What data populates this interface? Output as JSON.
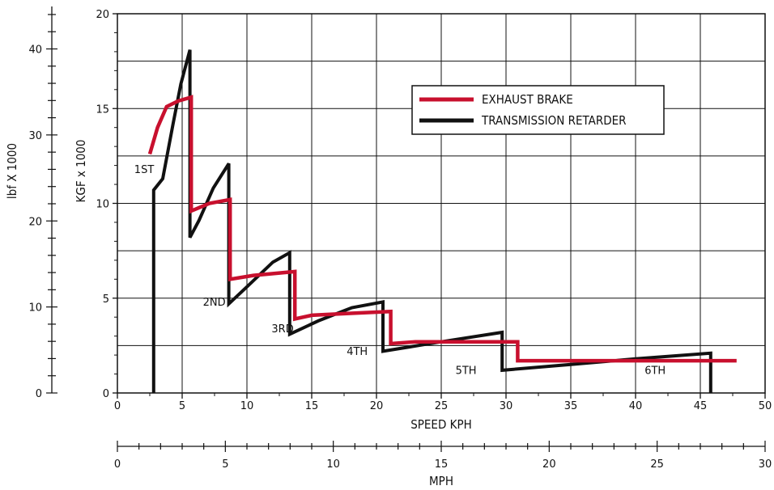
{
  "chart_data": {
    "type": "line",
    "title": "",
    "xlabel": "SPEED KPH",
    "ylabel": "KGF x 1000",
    "secondary_x_label": "MPH",
    "secondary_y_label": "lbf X 1000",
    "xlim": [
      0,
      50
    ],
    "ylim": [
      0,
      20
    ],
    "mph_lim": [
      0,
      30
    ],
    "lbf_lim": [
      0,
      44.09
    ],
    "grid": true,
    "x_ticks": [
      "0",
      "5",
      "10",
      "15",
      "20",
      "25",
      "30",
      "35",
      "40",
      "45",
      "50"
    ],
    "y_ticks": [
      "0",
      "5",
      "10",
      "15",
      "20"
    ],
    "mph_ticks": [
      "0",
      "5",
      "10",
      "15",
      "20",
      "25",
      "30"
    ],
    "lbf_ticks": [
      "0",
      "10",
      "20",
      "30",
      "40"
    ],
    "legend_position": "upper-right",
    "series": [
      {
        "name": "EXHAUST BRAKE",
        "color": "#c8102e",
        "points": [
          [
            2.5,
            12.6
          ],
          [
            3.1,
            14.0
          ],
          [
            3.8,
            15.1
          ],
          [
            4.7,
            15.4
          ],
          [
            5.7,
            15.6
          ],
          [
            5.7,
            9.6
          ],
          [
            7.1,
            10.0
          ],
          [
            8.7,
            10.2
          ],
          [
            8.7,
            6.0
          ],
          [
            10.5,
            6.2
          ],
          [
            13.7,
            6.4
          ],
          [
            13.7,
            3.9
          ],
          [
            15.0,
            4.1
          ],
          [
            18.0,
            4.2
          ],
          [
            21.1,
            4.3
          ],
          [
            21.1,
            2.6
          ],
          [
            23.0,
            2.7
          ],
          [
            25.0,
            2.7
          ],
          [
            30.9,
            2.7
          ],
          [
            30.9,
            1.7
          ],
          [
            36.0,
            1.7
          ],
          [
            42.0,
            1.7
          ],
          [
            47.8,
            1.7
          ]
        ]
      },
      {
        "name": "TRANSMISSION RETARDER",
        "color": "#111111",
        "points": [
          [
            2.8,
            0.0
          ],
          [
            2.8,
            10.7
          ],
          [
            3.5,
            11.3
          ],
          [
            4.3,
            14.2
          ],
          [
            4.9,
            16.3
          ],
          [
            5.6,
            18.1
          ],
          [
            5.6,
            8.2
          ],
          [
            6.3,
            9.1
          ],
          [
            7.4,
            10.8
          ],
          [
            8.6,
            12.1
          ],
          [
            8.6,
            4.7
          ],
          [
            10.0,
            5.6
          ],
          [
            12.0,
            6.9
          ],
          [
            13.3,
            7.4
          ],
          [
            13.3,
            3.1
          ],
          [
            15.5,
            3.8
          ],
          [
            18.1,
            4.5
          ],
          [
            20.5,
            4.8
          ],
          [
            20.5,
            2.2
          ],
          [
            25.0,
            2.7
          ],
          [
            29.7,
            3.2
          ],
          [
            29.7,
            1.2
          ],
          [
            35.0,
            1.5
          ],
          [
            40.0,
            1.8
          ],
          [
            45.8,
            2.1
          ],
          [
            45.8,
            0.0
          ]
        ]
      }
    ],
    "annotations": [
      {
        "text": "1ST",
        "x": 1.3,
        "y": 11.6
      },
      {
        "text": "2ND",
        "x": 6.6,
        "y": 4.6
      },
      {
        "text": "3RD",
        "x": 11.9,
        "y": 3.2
      },
      {
        "text": "4TH",
        "x": 17.7,
        "y": 2.0
      },
      {
        "text": "5TH",
        "x": 26.1,
        "y": 1.0
      },
      {
        "text": "6TH",
        "x": 40.7,
        "y": 1.0
      }
    ]
  }
}
